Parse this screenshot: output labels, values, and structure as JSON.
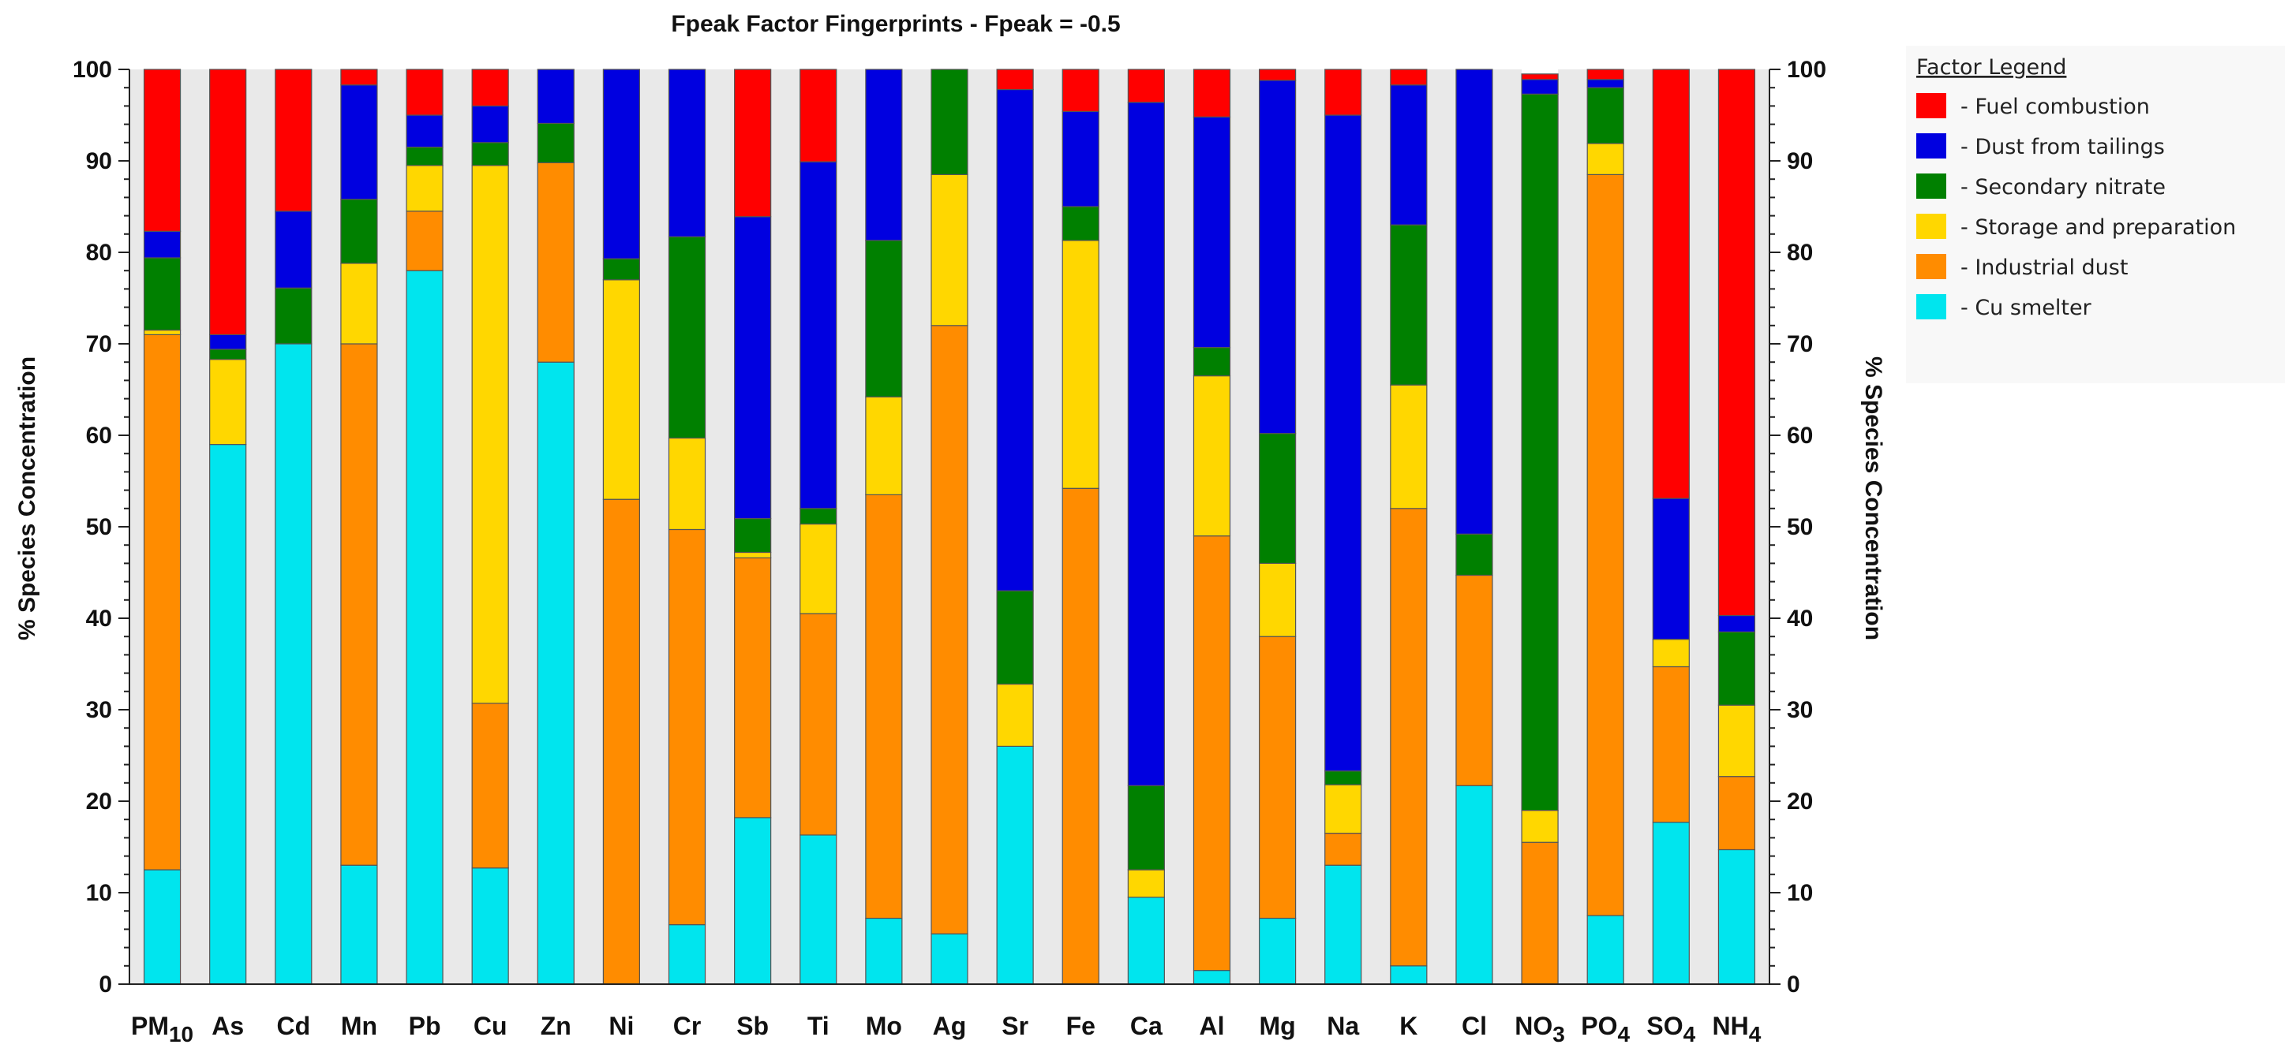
{
  "chart_data": {
    "type": "bar",
    "stacked": true,
    "title": "Fpeak Factor Fingerprints - Fpeak = -0.5",
    "ylabel": "% Species Concentration",
    "ylabel_right": "% Species Concentration",
    "ylim": [
      0,
      100
    ],
    "yticks": [
      0,
      10,
      20,
      30,
      40,
      50,
      60,
      70,
      80,
      90,
      100
    ],
    "legend_title": "Factor Legend",
    "legend_position": "top-right",
    "categories": [
      {
        "base": "PM",
        "sub": "10"
      },
      {
        "base": "As",
        "sub": ""
      },
      {
        "base": "Cd",
        "sub": ""
      },
      {
        "base": "Mn",
        "sub": ""
      },
      {
        "base": "Pb",
        "sub": ""
      },
      {
        "base": "Cu",
        "sub": ""
      },
      {
        "base": "Zn",
        "sub": ""
      },
      {
        "base": "Ni",
        "sub": ""
      },
      {
        "base": "Cr",
        "sub": ""
      },
      {
        "base": "Sb",
        "sub": ""
      },
      {
        "base": "Ti",
        "sub": ""
      },
      {
        "base": "Mo",
        "sub": ""
      },
      {
        "base": "Ag",
        "sub": ""
      },
      {
        "base": "Sr",
        "sub": ""
      },
      {
        "base": "Fe",
        "sub": ""
      },
      {
        "base": "Ca",
        "sub": ""
      },
      {
        "base": "Al",
        "sub": ""
      },
      {
        "base": "Mg",
        "sub": ""
      },
      {
        "base": "Na",
        "sub": ""
      },
      {
        "base": "K",
        "sub": ""
      },
      {
        "base": "Cl",
        "sub": ""
      },
      {
        "base": "NO",
        "sub": "3"
      },
      {
        "base": "PO",
        "sub": "4"
      },
      {
        "base": "SO",
        "sub": "4"
      },
      {
        "base": "NH",
        "sub": "4"
      }
    ],
    "series": [
      {
        "name": "Cu smelter",
        "color": "#00e5ee",
        "values": [
          12.5,
          59,
          70,
          13,
          78,
          12.7,
          68,
          0,
          6.5,
          18.2,
          16.3,
          7.2,
          5.5,
          26,
          0,
          9.5,
          1.5,
          7.2,
          13,
          2,
          21.7,
          0,
          7.5,
          17.7,
          14.7
        ]
      },
      {
        "name": "Industrial dust",
        "color": "#ff8c00",
        "values": [
          58.5,
          0,
          0,
          57,
          6.5,
          18,
          21.8,
          53,
          43.2,
          28.4,
          24.2,
          46.3,
          66.5,
          0,
          54.2,
          0,
          47.5,
          30.8,
          3.5,
          50,
          23,
          15.5,
          81,
          17,
          8
        ]
      },
      {
        "name": "Storage and preparation",
        "color": "#ffd700",
        "values": [
          0.5,
          9.3,
          0,
          8.8,
          5,
          58.8,
          0,
          24,
          10,
          0.6,
          9.8,
          10.7,
          16.5,
          6.8,
          27.1,
          3,
          17.5,
          8,
          5.3,
          13.5,
          0,
          3.5,
          3.4,
          3,
          7.8
        ]
      },
      {
        "name": "Secondary nitrate",
        "color": "#008000",
        "values": [
          7.9,
          1.1,
          6.1,
          7,
          2,
          2.5,
          4.3,
          2.3,
          22,
          3.7,
          1.7,
          17.1,
          11.5,
          10.2,
          3.7,
          9.2,
          3.1,
          14.2,
          1.5,
          17.5,
          4.5,
          78.3,
          6.1,
          0,
          8
        ]
      },
      {
        "name": "Dust from tailings",
        "color": "#0000e0",
        "values": [
          2.9,
          1.6,
          8.4,
          12.5,
          3.5,
          4,
          5.9,
          20.7,
          18.3,
          33,
          37.9,
          18.7,
          0,
          54.8,
          10.4,
          74.7,
          25.2,
          38.6,
          71.7,
          15.3,
          50.8,
          1.6,
          0.9,
          15.4,
          1.8
        ]
      },
      {
        "name": "Fuel combustion",
        "color": "#ff0000",
        "values": [
          17.7,
          29,
          15.5,
          1.7,
          5,
          4,
          0,
          0,
          0,
          16.1,
          10.1,
          0,
          0,
          2.2,
          4.6,
          3.6,
          5.2,
          1.2,
          5,
          1.7,
          0,
          0.6,
          1.1,
          46.9,
          59.7
        ]
      }
    ],
    "legend_order": [
      "Fuel combustion",
      "Dust from tailings",
      "Secondary nitrate",
      "Storage and preparation",
      "Industrial dust",
      "Cu smelter"
    ],
    "legend_labels": [
      "- Fuel combustion",
      "- Dust from tailings",
      "- Secondary nitrate",
      "- Storage and preparation",
      "- Industrial dust",
      "- Cu smelter"
    ]
  }
}
